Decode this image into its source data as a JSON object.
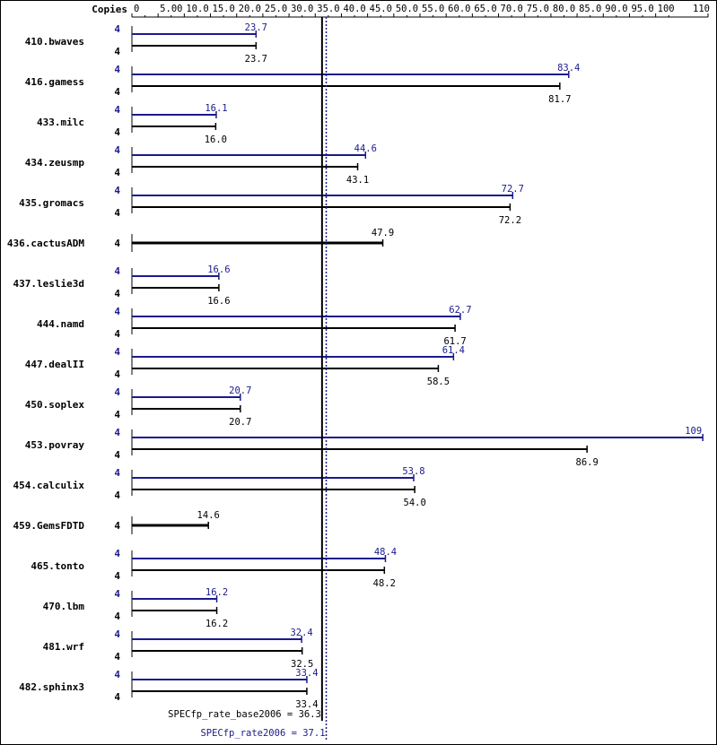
{
  "chart_data": {
    "type": "bar",
    "header_label": "Copies",
    "ticks": [
      "0",
      "5.00",
      "10.0",
      "15.0",
      "20.0",
      "25.0",
      "30.0",
      "35.0",
      "40.0",
      "45.0",
      "50.0",
      "55.0",
      "60.0",
      "65.0",
      "70.0",
      "75.0",
      "80.0",
      "85.0",
      "90.0",
      "95.0",
      "100",
      "110"
    ],
    "xlim": [
      0,
      110
    ],
    "colors": {
      "peak": "#1a1a8c",
      "base": "#000000"
    },
    "series": [
      {
        "key": "peak",
        "color": "#1a1a8c"
      },
      {
        "key": "base",
        "color": "#000000"
      }
    ],
    "benchmarks": [
      {
        "name": "410.bwaves",
        "peak_copies": "4",
        "base_copies": "4",
        "peak": 23.7,
        "peak_label": "23.7",
        "base": 23.7,
        "base_label": "23.7"
      },
      {
        "name": "416.gamess",
        "peak_copies": "4",
        "base_copies": "4",
        "peak": 83.4,
        "peak_label": "83.4",
        "base": 81.7,
        "base_label": "81.7"
      },
      {
        "name": "433.milc",
        "peak_copies": "4",
        "base_copies": "4",
        "peak": 16.1,
        "peak_label": "16.1",
        "base": 16.0,
        "base_label": "16.0"
      },
      {
        "name": "434.zeusmp",
        "peak_copies": "4",
        "base_copies": "4",
        "peak": 44.6,
        "peak_label": "44.6",
        "base": 43.1,
        "base_label": "43.1"
      },
      {
        "name": "435.gromacs",
        "peak_copies": "4",
        "base_copies": "4",
        "peak": 72.7,
        "peak_label": "72.7",
        "base": 72.2,
        "base_label": "72.2"
      },
      {
        "name": "436.cactusADM",
        "combined": true,
        "copies": "4",
        "value": 47.9,
        "value_label": "47.9"
      },
      {
        "name": "437.leslie3d",
        "peak_copies": "4",
        "base_copies": "4",
        "peak": 16.6,
        "peak_label": "16.6",
        "base": 16.6,
        "base_label": "16.6"
      },
      {
        "name": "444.namd",
        "peak_copies": "4",
        "base_copies": "4",
        "peak": 62.7,
        "peak_label": "62.7",
        "base": 61.7,
        "base_label": "61.7"
      },
      {
        "name": "447.dealII",
        "peak_copies": "4",
        "base_copies": "4",
        "peak": 61.4,
        "peak_label": "61.4",
        "base": 58.5,
        "base_label": "58.5"
      },
      {
        "name": "450.soplex",
        "peak_copies": "4",
        "base_copies": "4",
        "peak": 20.7,
        "peak_label": "20.7",
        "base": 20.7,
        "base_label": "20.7"
      },
      {
        "name": "453.povray",
        "peak_copies": "4",
        "base_copies": "4",
        "peak": 109,
        "peak_label": "109",
        "base": 86.9,
        "base_label": "86.9"
      },
      {
        "name": "454.calculix",
        "peak_copies": "4",
        "base_copies": "4",
        "peak": 53.8,
        "peak_label": "53.8",
        "base": 54.0,
        "base_label": "54.0"
      },
      {
        "name": "459.GemsFDTD",
        "combined": true,
        "copies": "4",
        "value": 14.6,
        "value_label": "14.6"
      },
      {
        "name": "465.tonto",
        "peak_copies": "4",
        "base_copies": "4",
        "peak": 48.4,
        "peak_label": "48.4",
        "base": 48.2,
        "base_label": "48.2"
      },
      {
        "name": "470.lbm",
        "peak_copies": "4",
        "base_copies": "4",
        "peak": 16.2,
        "peak_label": "16.2",
        "base": 16.2,
        "base_label": "16.2"
      },
      {
        "name": "481.wrf",
        "peak_copies": "4",
        "base_copies": "4",
        "peak": 32.4,
        "peak_label": "32.4",
        "base": 32.5,
        "base_label": "32.5"
      },
      {
        "name": "482.sphinx3",
        "peak_copies": "4",
        "base_copies": "4",
        "peak": 33.4,
        "peak_label": "33.4",
        "base": 33.4,
        "base_label": "33.4"
      }
    ],
    "reference_lines": [
      {
        "key": "base",
        "label": "SPECfp_rate_base2006 = 36.3",
        "value": 36.3,
        "style": "solid",
        "color": "#000000"
      },
      {
        "key": "peak",
        "label": "SPECfp_rate2006 = 37.1",
        "value": 37.1,
        "style": "dotted",
        "color": "#1a1a8c"
      }
    ]
  }
}
